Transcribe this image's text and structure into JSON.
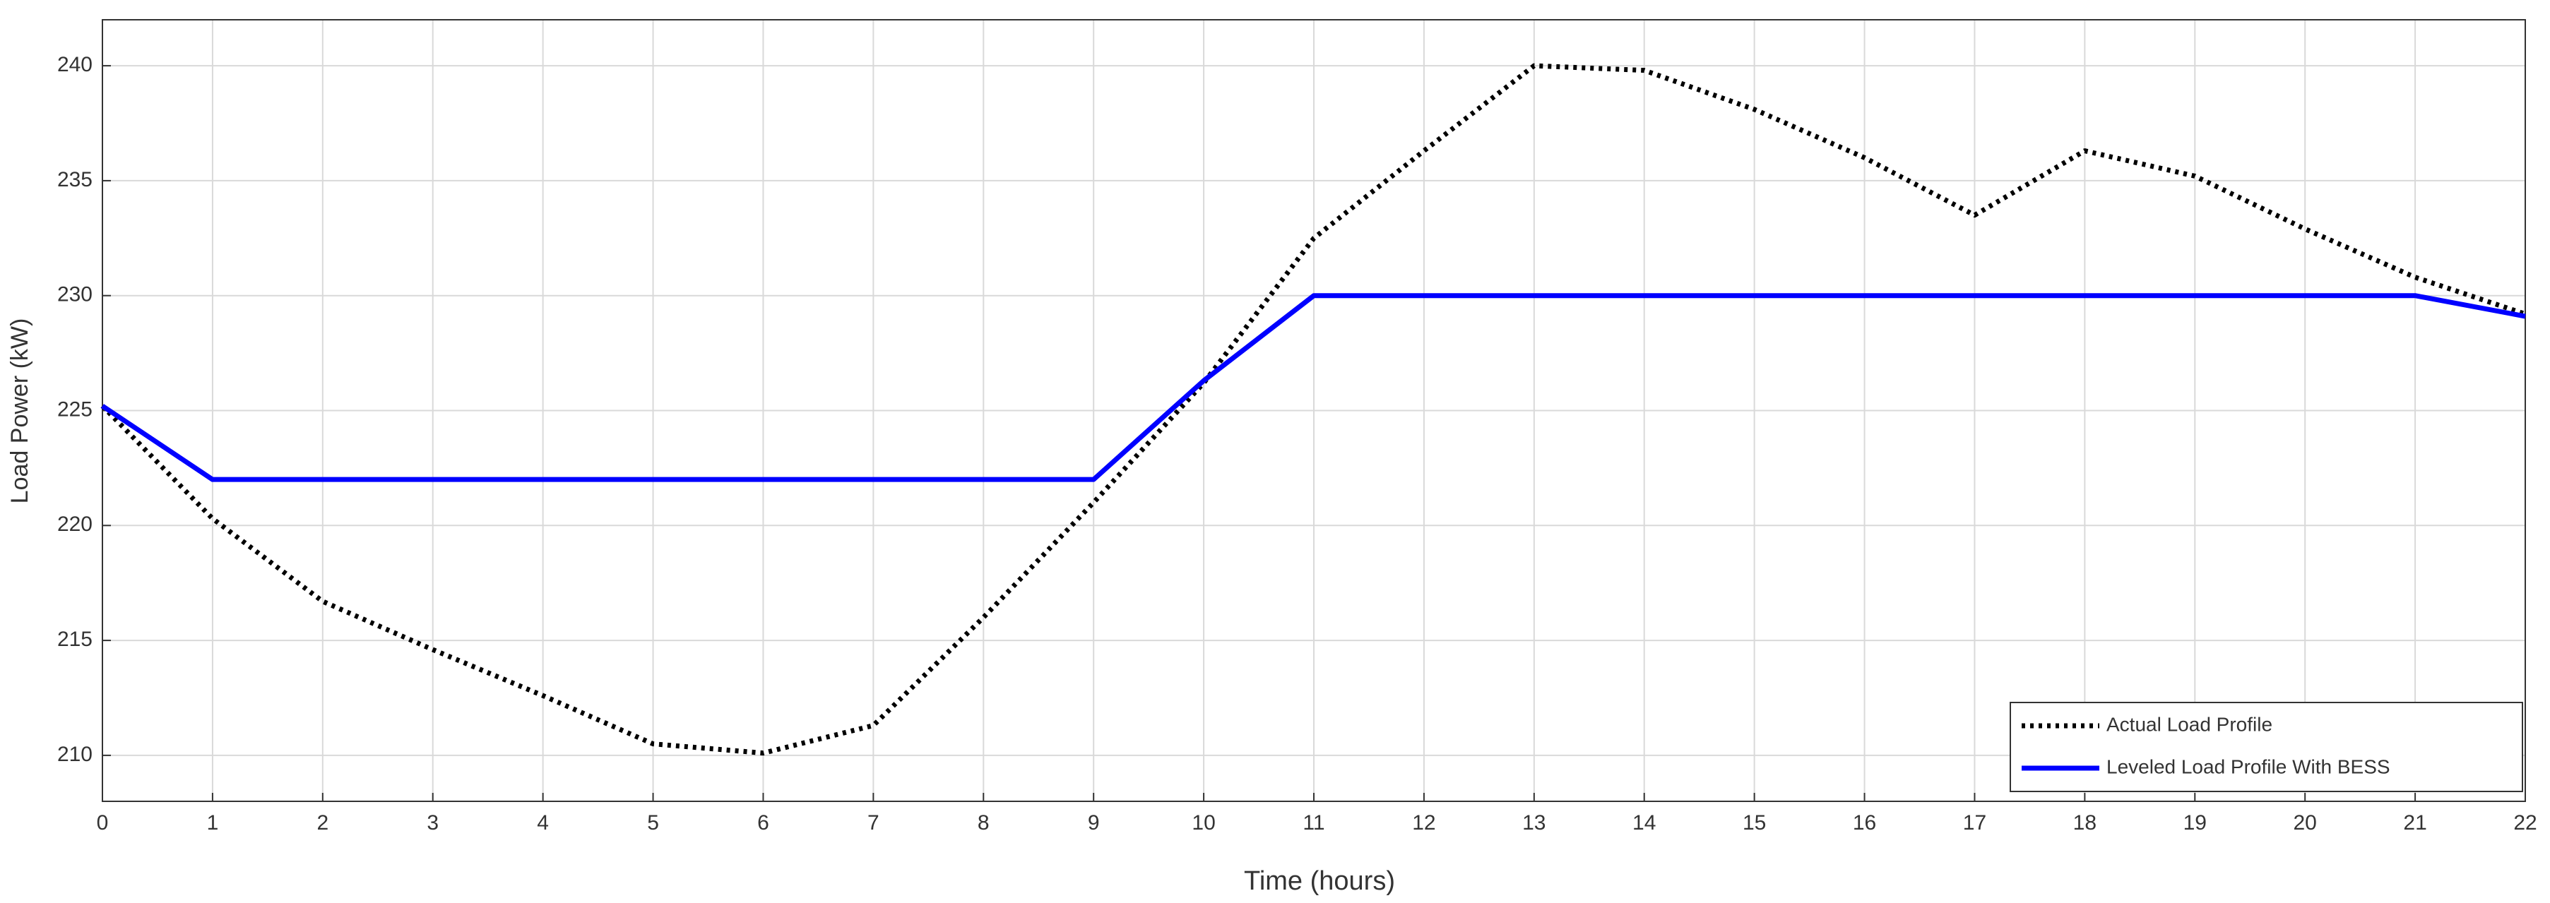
{
  "chart_data": {
    "type": "line",
    "xlabel": "Time (hours)",
    "ylabel": "Load Power (kW)",
    "x": [
      0,
      1,
      2,
      3,
      4,
      5,
      6,
      7,
      8,
      9,
      10,
      11,
      12,
      13,
      14,
      15,
      16,
      17,
      18,
      19,
      20,
      21,
      22
    ],
    "series": [
      {
        "name": "Actual Load Profile",
        "color": "#000000",
        "dash": "dotted",
        "values": [
          225.2,
          220.3,
          216.7,
          214.6,
          212.6,
          210.5,
          210.1,
          211.3,
          216,
          221,
          226.2,
          232.5,
          236.3,
          240,
          239.8,
          238.1,
          236,
          233.5,
          236.3,
          235.2,
          232.9,
          230.8,
          229.2
        ]
      },
      {
        "name": "Leveled Load Profile With BESS",
        "color": "#0000ff",
        "dash": "solid",
        "values": [
          225.2,
          222,
          222,
          222,
          222,
          222,
          222,
          222,
          222,
          222,
          226.3,
          230,
          230,
          230,
          230,
          230,
          230,
          230,
          230,
          230,
          230,
          230,
          229.1
        ]
      }
    ],
    "xlim": [
      0,
      22
    ],
    "xticks": [
      0,
      1,
      2,
      3,
      4,
      5,
      6,
      7,
      8,
      9,
      10,
      11,
      12,
      13,
      14,
      15,
      16,
      17,
      18,
      19,
      20,
      21,
      22
    ],
    "ylim": [
      208,
      242
    ],
    "yticks": [
      210,
      215,
      220,
      225,
      230,
      235,
      240
    ],
    "grid": true,
    "legend": "lower right"
  }
}
